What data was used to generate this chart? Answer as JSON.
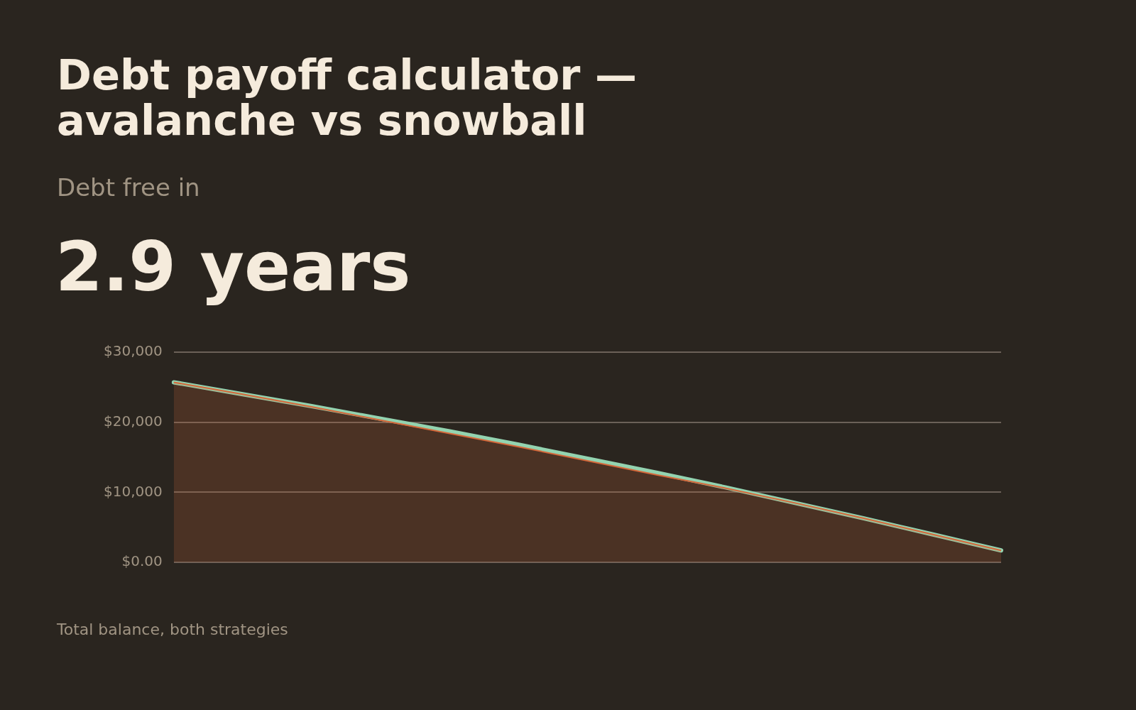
{
  "chart_data": {
    "type": "line",
    "title": "Debt payoff calculator — avalanche vs snowball",
    "subtitle": "Debt free in",
    "annotations": [
      "2.9 years",
      "Total balance, both strategies"
    ],
    "categories": [
      null,
      null,
      null,
      null,
      null,
      null,
      null,
      null,
      null,
      null,
      null,
      null,
      null
    ],
    "series": [
      {
        "type": "area",
        "color": "#d4683a",
        "values": [
          25700,
          24000,
          22200,
          20300,
          18400,
          16500,
          14500,
          12500,
          10600,
          8500,
          6300,
          4000,
          1700
        ]
      },
      {
        "type": "line",
        "color": "#93d3b0",
        "values": [
          25700,
          24000,
          22300,
          20500,
          18700,
          16800,
          14800,
          12800,
          10700,
          8500,
          6300,
          4000,
          1700
        ]
      }
    ],
    "ylim": [
      0,
      30000
    ],
    "yticks": [
      {
        "value": 0,
        "label": "$0.00"
      },
      {
        "value": 10000,
        "label": "$10,000"
      },
      {
        "value": 20000,
        "label": "$20,000"
      },
      {
        "value": 30000,
        "label": "$30,000"
      }
    ],
    "grid": "y",
    "legend": false,
    "tick_labels": "y"
  }
}
